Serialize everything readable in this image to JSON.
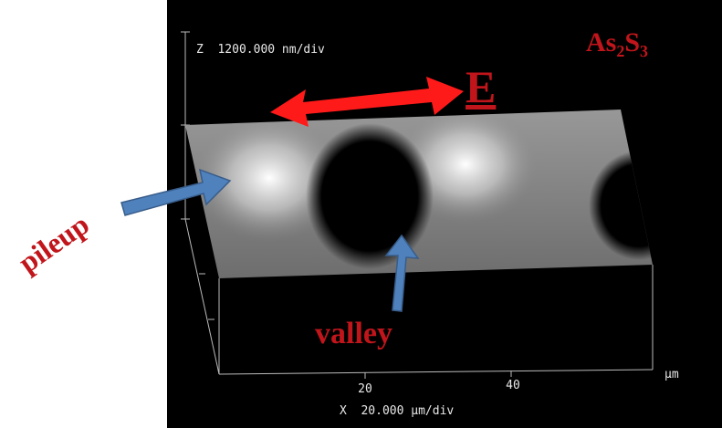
{
  "figure": {
    "z_scale": "Z  1200.000 nm/div",
    "material": "As₂S₃",
    "field_label": "E",
    "pileup_label": "pileup",
    "valley_label": "valley",
    "x_ticks": [
      "20",
      "40"
    ],
    "x_unit": "µm",
    "x_scale": "X  20.000 µm/div"
  }
}
